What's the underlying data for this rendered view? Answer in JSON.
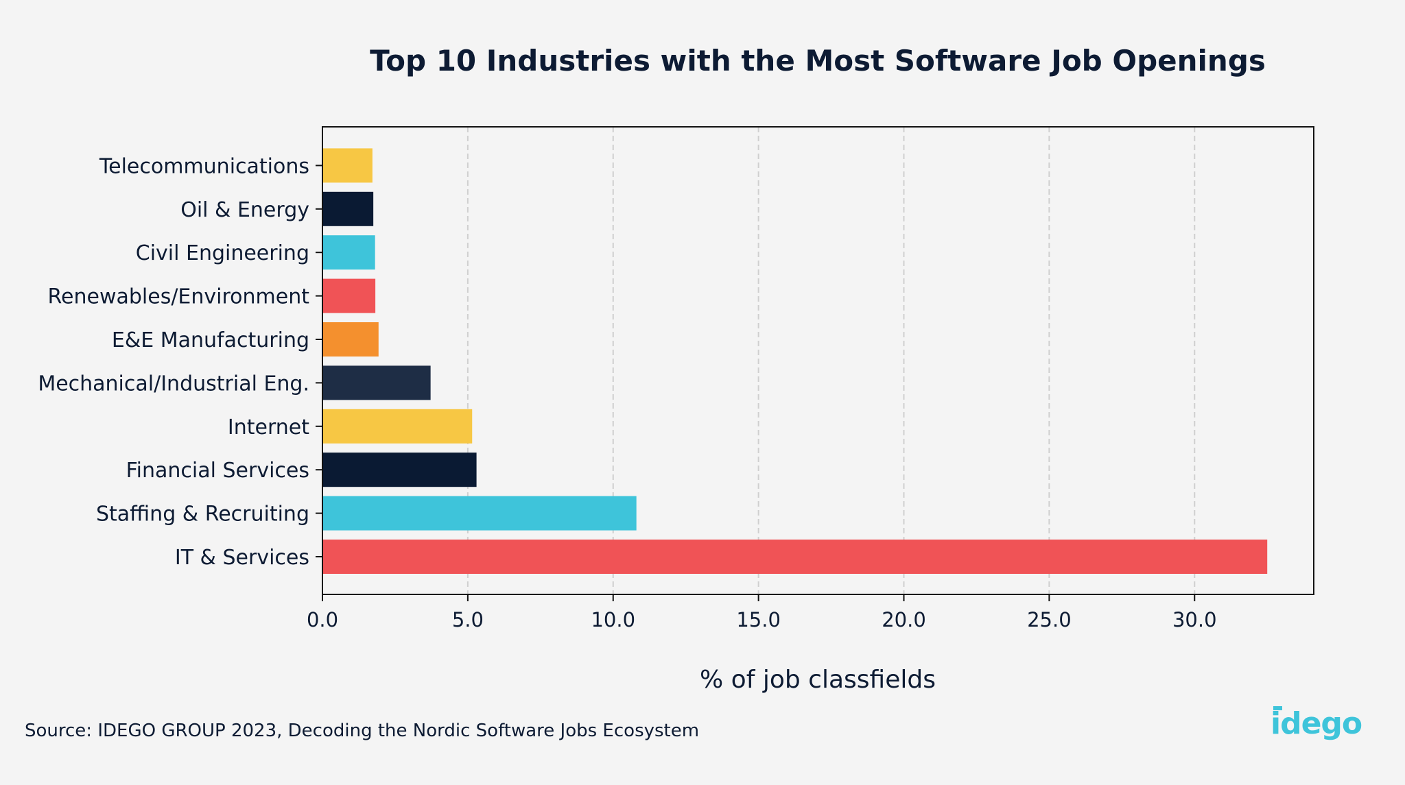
{
  "chart_data": {
    "type": "bar",
    "orientation": "horizontal",
    "title": "Top 10 Industries with the Most Software Job Openings",
    "xlabel": "% of job classfields",
    "ylabel": "",
    "categories": [
      "IT & Services",
      "Staffing & Recruiting",
      "Financial Services",
      "Internet",
      "Mechanical/Industrial Eng.",
      "E&E Manufacturing",
      "Renewables/Environment",
      "Civil Engineering",
      "Oil & Energy",
      "Telecommunications"
    ],
    "values": [
      32.5,
      10.8,
      5.3,
      5.15,
      3.72,
      1.93,
      1.82,
      1.81,
      1.75,
      1.72
    ],
    "colors": [
      "#f05356",
      "#3ec4da",
      "#0a1a33",
      "#f7c744",
      "#1e2d45",
      "#f4902e",
      "#f05356",
      "#3ec4da",
      "#0a1a33",
      "#f7c744"
    ],
    "xlim": [
      0,
      34.1
    ],
    "xticks": [
      "0.0",
      "5.0",
      "10.0",
      "15.0",
      "20.0",
      "25.0",
      "30.0"
    ],
    "grid": "vertical dashed",
    "legend": "none"
  },
  "footer": {
    "source": "Source: IDEGO GROUP 2023, Decoding the Nordic Software Jobs Ecosystem",
    "logo_text": "idego",
    "logo_color": "#3ec4da"
  }
}
